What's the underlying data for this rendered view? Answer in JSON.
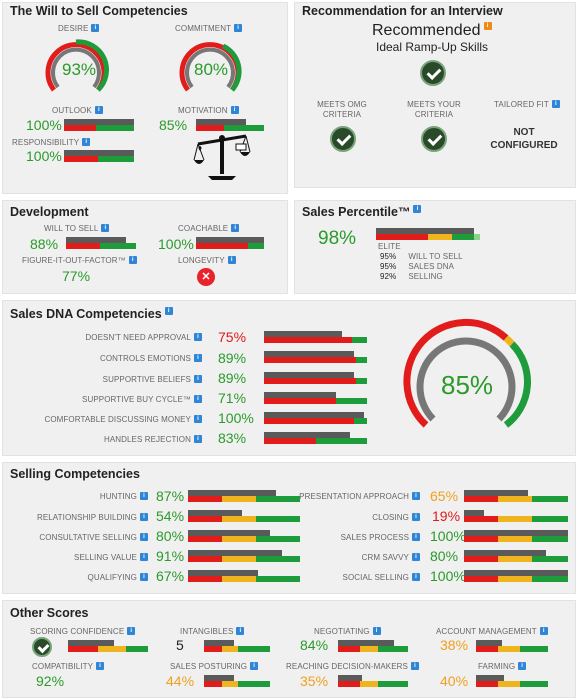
{
  "will": {
    "title": "The Will to Sell Competencies",
    "desire": {
      "label": "DESIRE",
      "value": "93%"
    },
    "commitment": {
      "label": "COMMITMENT",
      "value": "80%"
    },
    "outlook": {
      "label": "OUTLOOK",
      "value": "100%"
    },
    "motivation": {
      "label": "MOTIVATION",
      "value": "85%"
    },
    "responsibility": {
      "label": "RESPONSIBILITY",
      "value": "100%"
    }
  },
  "recommendation": {
    "title": "Recommendation for an Interview",
    "status": "Recommended",
    "substatus": "Ideal Ramp-Up Skills",
    "omg": "MEETS OMG CRITERIA",
    "your": "MEETS YOUR CRITERIA",
    "tailored": "TAILORED FIT",
    "not_configured": "NOT CONFIGURED"
  },
  "development": {
    "title": "Development",
    "will_to_sell": {
      "label": "WILL TO SELL",
      "value": "88%"
    },
    "coachable": {
      "label": "COACHABLE",
      "value": "100%"
    },
    "fiof": {
      "label": "FIGURE-IT-OUT-FACTOR™",
      "value": "77%"
    },
    "longevity": {
      "label": "LONGEVITY"
    }
  },
  "percentile": {
    "title": "Sales Percentile™",
    "value": "98%",
    "tier": "ELITE",
    "rows": [
      {
        "pct": "95%",
        "label": "WILL TO SELL"
      },
      {
        "pct": "95%",
        "label": "SALES DNA"
      },
      {
        "pct": "92%",
        "label": "SELLING"
      }
    ]
  },
  "dna": {
    "title": "Sales DNA Competencies",
    "overall": "85%",
    "items": [
      {
        "label": "DOESN'T NEED APPROVAL",
        "value": "75%"
      },
      {
        "label": "CONTROLS EMOTIONS",
        "value": "89%"
      },
      {
        "label": "SUPPORTIVE BELIEFS",
        "value": "89%"
      },
      {
        "label": "SUPPORTIVE BUY CYCLE™",
        "value": "71%"
      },
      {
        "label": "COMFORTABLE DISCUSSING MONEY",
        "value": "100%"
      },
      {
        "label": "HANDLES REJECTION",
        "value": "83%"
      }
    ]
  },
  "selling": {
    "title": "Selling Competencies",
    "left": [
      {
        "label": "HUNTING",
        "value": "87%"
      },
      {
        "label": "RELATIONSHIP BUILDING",
        "value": "54%"
      },
      {
        "label": "CONSULTATIVE SELLING",
        "value": "80%"
      },
      {
        "label": "SELLING VALUE",
        "value": "91%"
      },
      {
        "label": "QUALIFYING",
        "value": "67%"
      }
    ],
    "right": [
      {
        "label": "PRESENTATION APPROACH",
        "value": "65%"
      },
      {
        "label": "CLOSING",
        "value": "19%"
      },
      {
        "label": "SALES PROCESS",
        "value": "100%"
      },
      {
        "label": "CRM SAVVY",
        "value": "80%"
      },
      {
        "label": "SOCIAL SELLING",
        "value": "100%"
      }
    ]
  },
  "other": {
    "title": "Other Scores",
    "scoring_confidence": {
      "label": "SCORING CONFIDENCE"
    },
    "intangibles": {
      "label": "INTANGIBLES",
      "value": "5"
    },
    "negotiating": {
      "label": "NEGOTIATING",
      "value": "84%"
    },
    "account_management": {
      "label": "ACCOUNT MANAGEMENT",
      "value": "38%"
    },
    "compatibility": {
      "label": "COMPATIBILITY",
      "value": "92%"
    },
    "sales_posturing": {
      "label": "SALES POSTURING",
      "value": "44%"
    },
    "reaching": {
      "label": "REACHING DECISION-MAKERS",
      "value": "35%"
    },
    "farming": {
      "label": "FARMING",
      "value": "40%"
    }
  }
}
